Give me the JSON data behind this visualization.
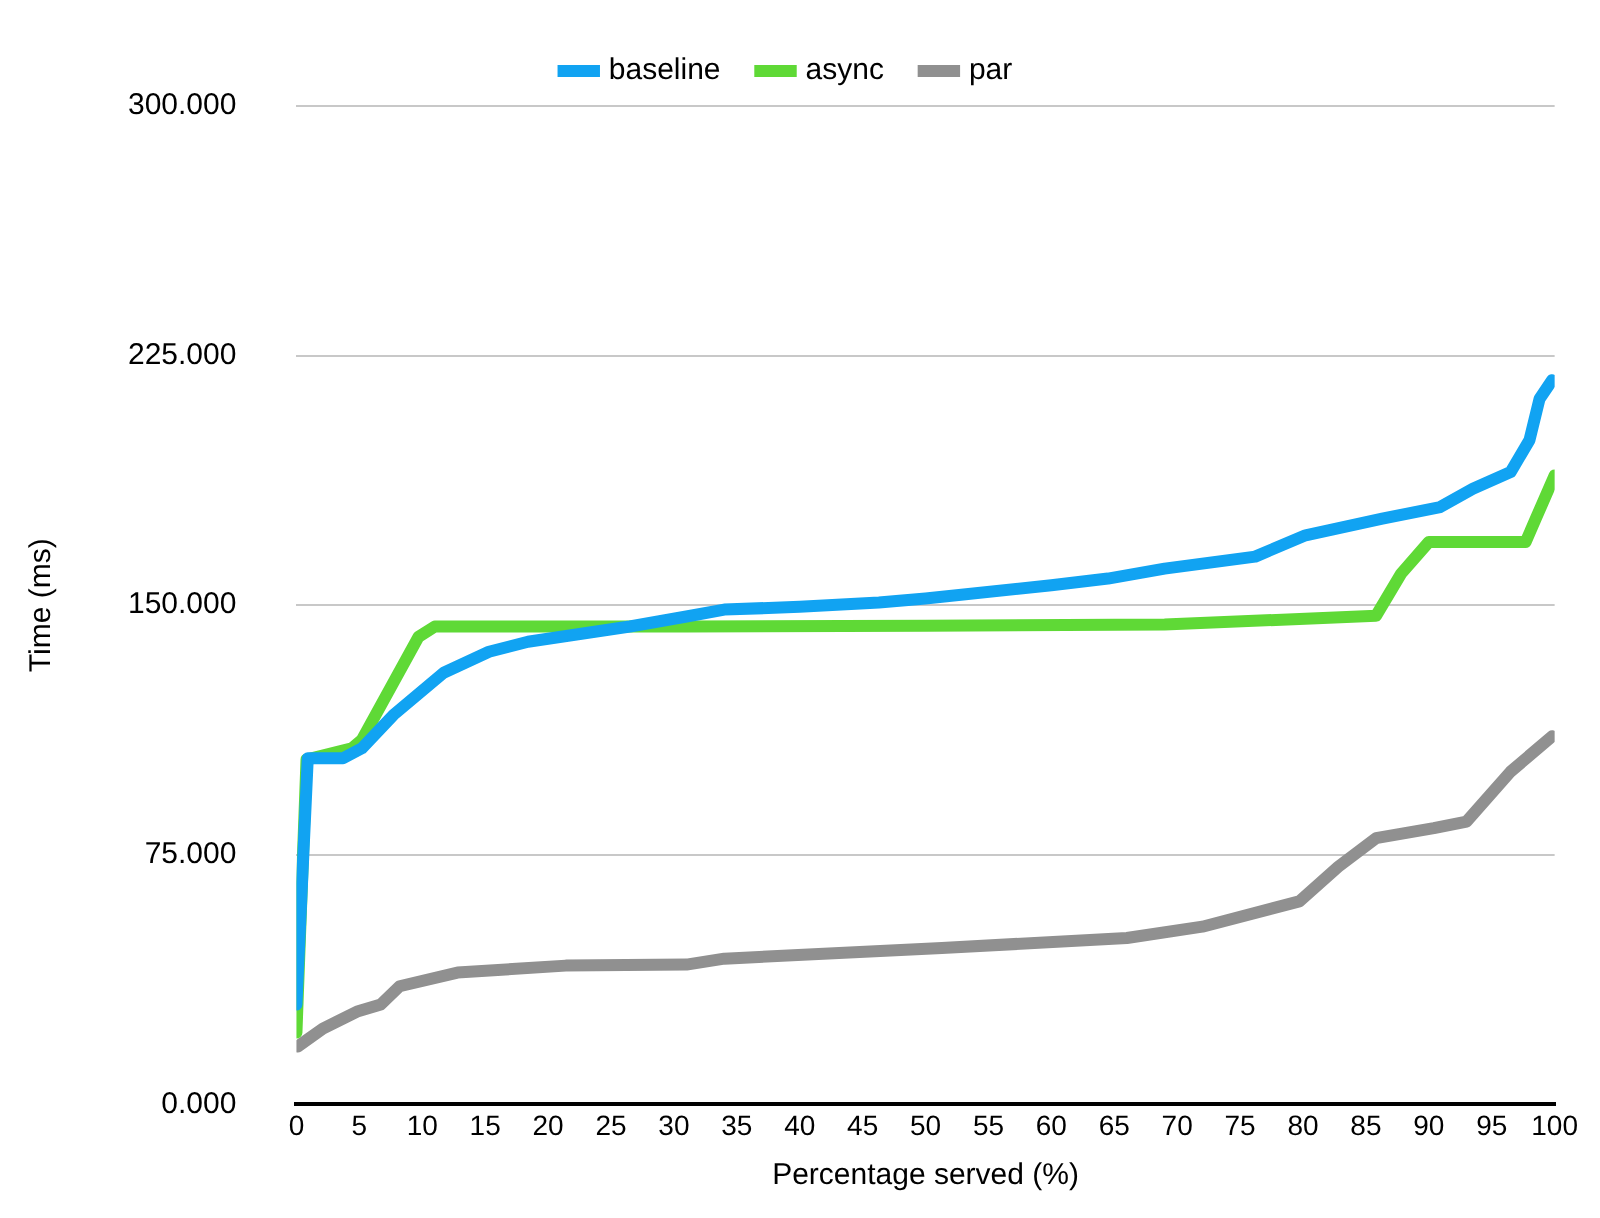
{
  "chart_data": {
    "type": "line",
    "xlabel": "Percentage served (%)",
    "ylabel": "Time (ms)",
    "xlim": [
      0,
      100
    ],
    "xticks": [
      0,
      5,
      10,
      15,
      20,
      25,
      30,
      35,
      40,
      45,
      50,
      55,
      60,
      65,
      70,
      75,
      80,
      85,
      90,
      95,
      100
    ],
    "ylim": [
      0,
      300
    ],
    "yticks": [
      {
        "value": 0,
        "label": "0.000"
      },
      {
        "value": 75,
        "label": "75.000"
      },
      {
        "value": 150,
        "label": "150.000"
      },
      {
        "value": 225,
        "label": "225.000"
      },
      {
        "value": 300,
        "label": "300.000"
      }
    ],
    "grid": "y",
    "legend": "top",
    "marker": "none",
    "line_style": "solid",
    "series": [
      {
        "name": "baseline",
        "color": "#11a3f2",
        "x": [
          0,
          0.9,
          3.7,
          5.2,
          7.7,
          11.7,
          15.3,
          18.4,
          26.5,
          31,
          34,
          40,
          46.3,
          50,
          60,
          64.5,
          69,
          76.2,
          80.2,
          86.3,
          90.9,
          93.5,
          96.5,
          98,
          98.8,
          99.8
        ],
        "values": [
          30,
          104,
          104,
          107,
          117,
          129.7,
          136,
          139,
          143.6,
          146.6,
          148.7,
          149.5,
          150.8,
          152,
          156,
          158,
          161,
          164.6,
          171,
          176,
          179.5,
          185,
          190,
          199.6,
          212,
          217.6
        ]
      },
      {
        "name": "async",
        "color": "#5fd936",
        "x": [
          0,
          0.8,
          4.4,
          5.2,
          9.7,
          11,
          31,
          50,
          69,
          85.8,
          87.8,
          90,
          97.7,
          98.5,
          100
        ],
        "values": [
          21.6,
          103.6,
          107,
          109.5,
          140.5,
          143.6,
          143.6,
          143.8,
          144.2,
          146.8,
          159.5,
          169,
          169,
          176,
          189
        ]
      },
      {
        "name": "par",
        "color": "#909090",
        "x": [
          0.1,
          2.1,
          4.9,
          6.7,
          8.2,
          12.8,
          21.4,
          31,
          34,
          51.3,
          66,
          72,
          79.7,
          82.8,
          85.8,
          90.4,
          93,
          96.5,
          99.8
        ],
        "values": [
          17.4,
          22.8,
          28,
          30,
          35.5,
          39.6,
          41.7,
          42,
          43.8,
          47,
          50,
          53.4,
          61,
          71.4,
          80,
          83,
          85,
          100,
          110.6
        ]
      }
    ]
  }
}
